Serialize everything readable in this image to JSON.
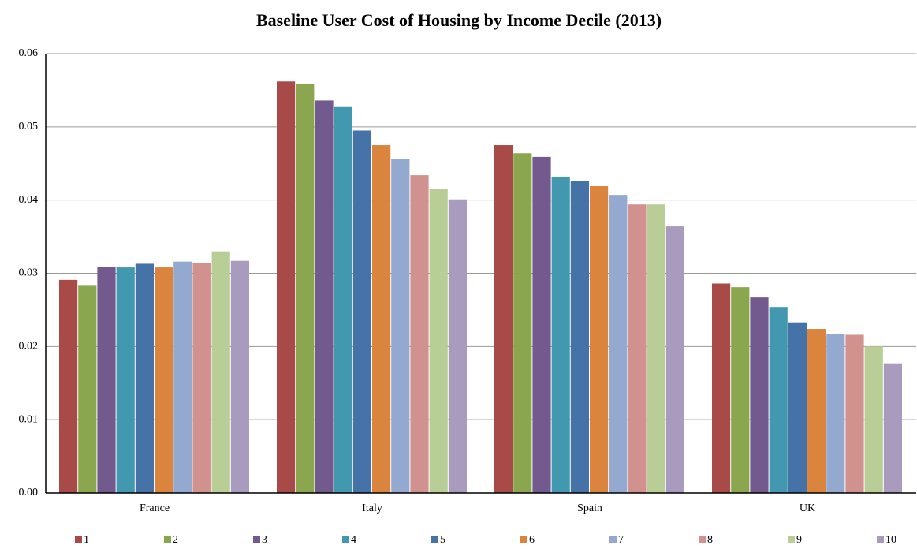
{
  "chart_data": {
    "type": "bar",
    "title": "Baseline User Cost of Housing by Income Decile (2013)",
    "categories": [
      "France",
      "Italy",
      "Spain",
      "UK"
    ],
    "series": [
      {
        "name": "1",
        "color": "#A84B48",
        "values": [
          0.0291,
          0.0562,
          0.0475,
          0.0286
        ]
      },
      {
        "name": "2",
        "color": "#8AA64E",
        "values": [
          0.0284,
          0.0558,
          0.0464,
          0.0281
        ]
      },
      {
        "name": "3",
        "color": "#735A8E",
        "values": [
          0.0309,
          0.0536,
          0.0459,
          0.0267
        ]
      },
      {
        "name": "4",
        "color": "#4299AF",
        "values": [
          0.0308,
          0.0527,
          0.0432,
          0.0254
        ]
      },
      {
        "name": "5",
        "color": "#4572A7",
        "values": [
          0.0313,
          0.0495,
          0.0426,
          0.0233
        ]
      },
      {
        "name": "6",
        "color": "#DB843D",
        "values": [
          0.0308,
          0.0475,
          0.0419,
          0.0224
        ]
      },
      {
        "name": "7",
        "color": "#93A9CF",
        "values": [
          0.0316,
          0.0456,
          0.0407,
          0.0217
        ]
      },
      {
        "name": "8",
        "color": "#D1918F",
        "values": [
          0.0314,
          0.0434,
          0.0394,
          0.0216
        ]
      },
      {
        "name": "9",
        "color": "#B9CD96",
        "values": [
          0.033,
          0.0415,
          0.0394,
          0.02
        ]
      },
      {
        "name": "10",
        "color": "#A99BBD",
        "values": [
          0.0317,
          0.0401,
          0.0364,
          0.0177
        ]
      }
    ],
    "ylim": [
      0,
      0.06
    ],
    "yticks": [
      {
        "value": 0,
        "label": "0.00"
      },
      0.01,
      0.02,
      0.03,
      0.04,
      0.05,
      0.06
    ],
    "grid": true,
    "legend": "bottom"
  }
}
